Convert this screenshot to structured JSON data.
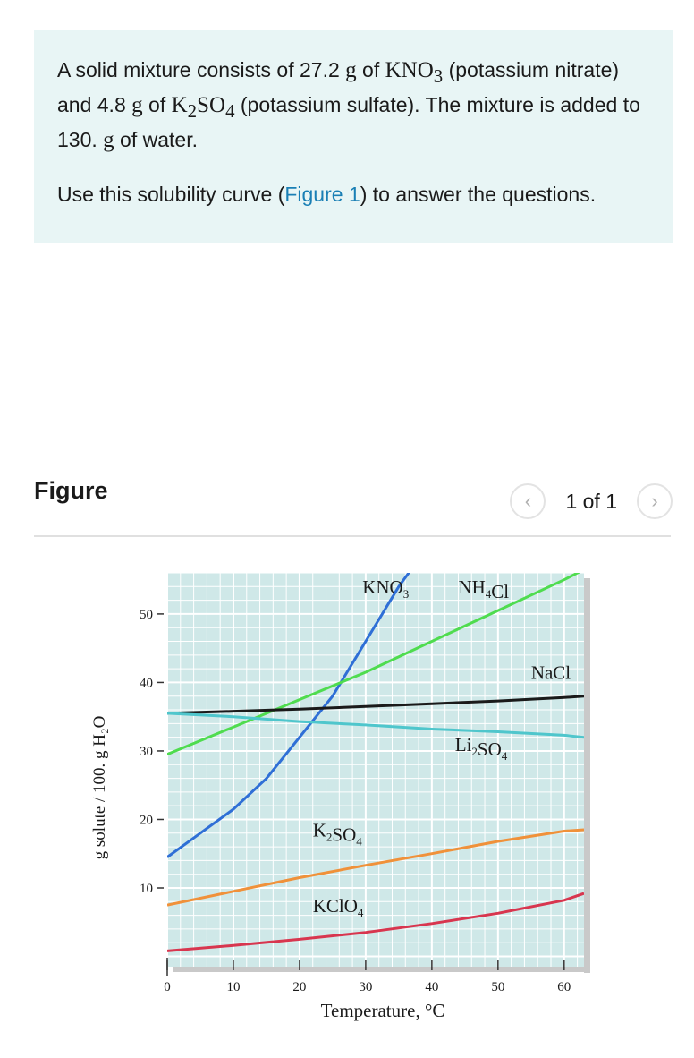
{
  "question": {
    "p1_a": "A solid mixture consists of 27.2 ",
    "unit_g1": "g",
    "p1_b": " of ",
    "formula1": "KNO",
    "formula1_sub": "3",
    "p1_c": " (potassium nitrate) and 4.8 ",
    "unit_g2": "g",
    "p1_d": " of ",
    "formula2_a": "K",
    "formula2_sub1": "2",
    "formula2_b": "SO",
    "formula2_sub2": "4",
    "p1_e": " (potassium sulfate). The mixture is added to 130. ",
    "unit_g3": "g",
    "p1_f": " of water.",
    "p2_a": "Use this solubility curve (",
    "p2_link": "Figure 1",
    "p2_b": ") to answer the questions."
  },
  "figure": {
    "title": "Figure",
    "pager": {
      "prev_icon": "chevron-left-icon",
      "count": "1 of 1",
      "next_icon": "chevron-right-icon"
    }
  },
  "colors": {
    "plot_bg": "#cfe8e8",
    "grid": "#ffffff",
    "KNO3": "#2f6fd6",
    "NH4Cl": "#4fdc4f",
    "NaCl": "#1a1a1a",
    "Li2SO4": "#4fc6cc",
    "K2SO4": "#f0913a",
    "KClO4": "#d8364f"
  },
  "chart_data": {
    "type": "line",
    "title": "",
    "xlabel": "Temperature, °C",
    "ylabel": "g solute / 100. g H₂O",
    "xlim": [
      0,
      63
    ],
    "ylim": [
      -1.5,
      56
    ],
    "x_ticks": [
      "0",
      "10",
      "20",
      "30",
      "40",
      "50",
      "60"
    ],
    "y_ticks": [
      "10",
      "20",
      "30",
      "40",
      "50"
    ],
    "grid": true,
    "series": [
      {
        "name": "KNO3",
        "label_main": "KNO",
        "label_sub": "3",
        "color": "KNO3",
        "x": [
          0,
          5,
          10,
          15,
          20,
          25,
          30,
          35,
          38
        ],
        "y": [
          14.5,
          18,
          21.5,
          26,
          32,
          38,
          46,
          54,
          58
        ]
      },
      {
        "name": "NH4Cl",
        "label_main": "NH",
        "label_sub": "4",
        "label_tail": "Cl",
        "color": "NH4Cl",
        "x": [
          0,
          10,
          20,
          30,
          40,
          50,
          60,
          63
        ],
        "y": [
          29.5,
          33.5,
          37.5,
          41.5,
          46,
          50.5,
          55,
          56.5
        ]
      },
      {
        "name": "NaCl",
        "label_main": "NaCl",
        "color": "NaCl",
        "x": [
          0,
          10,
          20,
          30,
          40,
          50,
          60,
          63
        ],
        "y": [
          35.5,
          35.8,
          36.1,
          36.5,
          36.9,
          37.3,
          37.8,
          38
        ]
      },
      {
        "name": "Li2SO4",
        "label_main": "Li",
        "label_sub": "2",
        "label_tail": "SO",
        "label_sub2": "4",
        "color": "Li2SO4",
        "x": [
          0,
          10,
          20,
          30,
          40,
          50,
          60,
          63
        ],
        "y": [
          35.5,
          35,
          34.3,
          33.8,
          33.2,
          32.8,
          32.3,
          32
        ]
      },
      {
        "name": "K2SO4",
        "label_main": "K",
        "label_sub": "2",
        "label_tail": "SO",
        "label_sub2": "4",
        "color": "K2SO4",
        "x": [
          0,
          10,
          20,
          30,
          40,
          50,
          60,
          63
        ],
        "y": [
          7.5,
          9.5,
          11.5,
          13.3,
          15,
          16.8,
          18.3,
          18.5
        ]
      },
      {
        "name": "KClO4",
        "label_main": "KClO",
        "label_sub": "4",
        "color": "KClO4",
        "x": [
          0,
          10,
          20,
          30,
          40,
          50,
          60,
          63
        ],
        "y": [
          0.8,
          1.6,
          2.5,
          3.5,
          4.8,
          6.3,
          8.2,
          9.2
        ]
      }
    ]
  }
}
